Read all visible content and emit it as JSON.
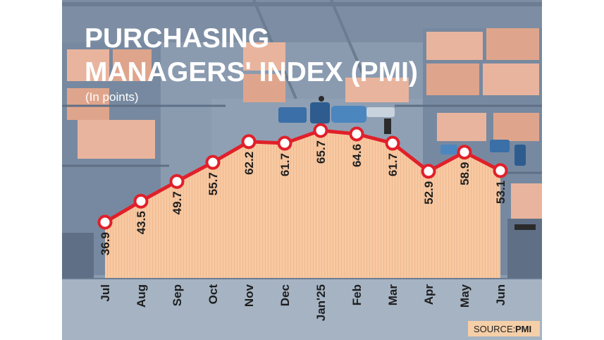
{
  "header": {
    "title_line1": "PURCHASING",
    "title_line2": "MANAGERS' INDEX (PMI)",
    "subtitle": "(In points)"
  },
  "source": {
    "label": "SOURCE:",
    "value": "PMI"
  },
  "colors": {
    "background_scene": "#8a9bb0",
    "area_fill": "#f7c9a3",
    "line": "#e0202a",
    "marker_fill": "#ffffff",
    "source_box": "#f5cfa8"
  },
  "chart_data": {
    "type": "area",
    "title": "PURCHASING MANAGERS' INDEX (PMI)",
    "subtitle": "(In points)",
    "categories": [
      "Jul",
      "Aug",
      "Sep",
      "Oct",
      "Nov",
      "Dec",
      "Jan'25",
      "Feb",
      "Mar",
      "Apr",
      "May",
      "Jun"
    ],
    "series": [
      {
        "values": [
          36.9,
          43.5,
          49.7,
          55.7,
          62.2,
          61.7,
          65.7,
          64.6,
          61.7,
          52.9,
          58.9,
          53.1
        ],
        "labels": [
          "36.9",
          "43.5",
          "49.7",
          "55.7",
          "62.2",
          "61.7",
          "65.7",
          "64.6",
          "61.7",
          "52.9",
          "58.9",
          "53.1"
        ]
      }
    ],
    "ylim": [
      0,
      75
    ],
    "grid": false,
    "legend": "none",
    "xlabel": "",
    "ylabel": ""
  }
}
